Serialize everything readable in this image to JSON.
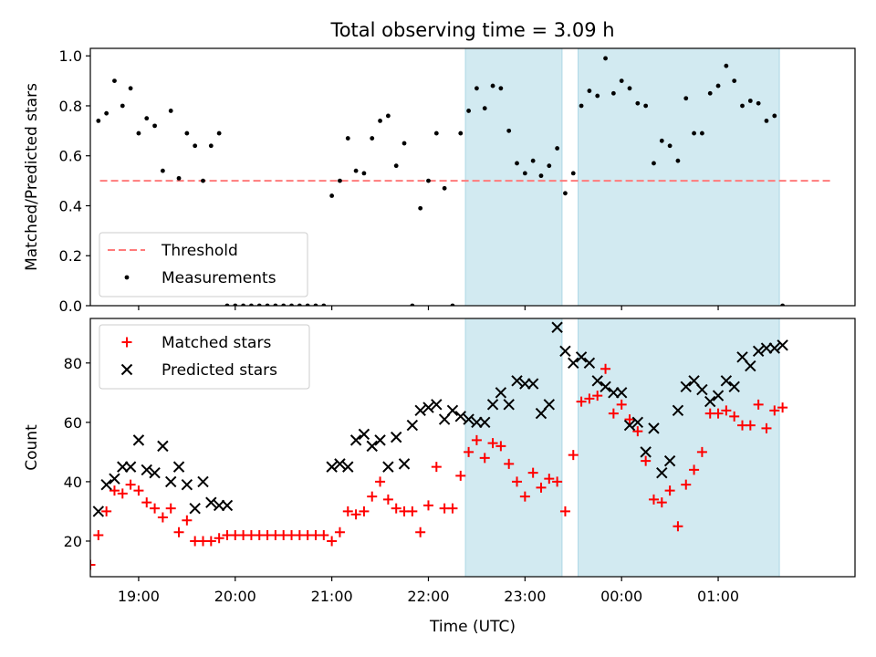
{
  "chart_data": {
    "title": "Total observing time = 3.09 h",
    "xlabel": "Time (UTC)",
    "x_ticks": [
      "19:00",
      "20:00",
      "21:00",
      "22:00",
      "23:00",
      "00:00",
      "01:00"
    ],
    "x_range": [
      "18:30",
      "02:25"
    ],
    "shaded_intervals": [
      [
        "22:23",
        "23:23"
      ],
      [
        "23:33",
        "01:38"
      ]
    ],
    "shade_color": "#add8e6",
    "panels": [
      {
        "type": "scatter",
        "ylabel": "Matched/Predicted stars",
        "ylim": [
          0,
          1.03
        ],
        "y_ticks": [
          "0.0",
          "0.2",
          "0.4",
          "0.6",
          "0.8",
          "1.0"
        ],
        "legend_position": "lower-left",
        "threshold": {
          "name": "Threshold",
          "value": 0.5,
          "x_range": [
            "18:36",
            "02:10"
          ],
          "color": "#ff7b7b",
          "style": "dashed"
        },
        "series": [
          {
            "name": "Measurements",
            "color": "#000000",
            "marker": "dot",
            "x": [
              "18:35",
              "18:40",
              "18:45",
              "18:50",
              "18:55",
              "19:00",
              "19:05",
              "19:10",
              "19:15",
              "19:20",
              "19:25",
              "19:30",
              "19:35",
              "19:40",
              "19:45",
              "19:50",
              "19:55",
              "20:00",
              "20:05",
              "20:10",
              "20:15",
              "20:20",
              "20:25",
              "20:30",
              "20:35",
              "20:40",
              "20:45",
              "20:50",
              "20:55",
              "21:00",
              "21:05",
              "21:10",
              "21:15",
              "21:20",
              "21:25",
              "21:30",
              "21:35",
              "21:40",
              "21:45",
              "21:50",
              "21:55",
              "22:00",
              "22:05",
              "22:10",
              "22:15",
              "22:20",
              "22:25",
              "22:30",
              "22:35",
              "22:40",
              "22:45",
              "22:50",
              "22:55",
              "23:00",
              "23:05",
              "23:10",
              "23:15",
              "23:20",
              "23:25",
              "23:30",
              "23:35",
              "23:40",
              "23:45",
              "23:50",
              "23:55",
              "00:00",
              "00:05",
              "00:10",
              "00:15",
              "00:20",
              "00:25",
              "00:30",
              "00:35",
              "00:40",
              "00:45",
              "00:50",
              "00:55",
              "01:00",
              "01:05",
              "01:10",
              "01:15",
              "01:20",
              "01:25",
              "01:30",
              "01:35",
              "01:40"
            ],
            "y": [
              0.74,
              0.77,
              0.9,
              0.8,
              0.87,
              0.69,
              0.75,
              0.72,
              0.54,
              0.78,
              0.51,
              0.69,
              0.64,
              0.5,
              0.64,
              0.69,
              0.0,
              0.0,
              0.0,
              0.0,
              0.0,
              0.0,
              0.0,
              0.0,
              0.0,
              0.0,
              0.0,
              0.0,
              0.0,
              0.44,
              0.5,
              0.67,
              0.54,
              0.53,
              0.67,
              0.74,
              0.76,
              0.56,
              0.65,
              0.0,
              0.39,
              0.5,
              0.69,
              0.47,
              0.0,
              0.69,
              0.78,
              0.87,
              0.79,
              0.88,
              0.87,
              0.7,
              0.57,
              0.53,
              0.58,
              0.52,
              0.56,
              0.63,
              0.45,
              0.53,
              0.8,
              0.86,
              0.84,
              0.99,
              0.85,
              0.9,
              0.87,
              0.81,
              0.8,
              0.57,
              0.66,
              0.64,
              0.58,
              0.83,
              0.69,
              0.69,
              0.85,
              0.88,
              0.96,
              0.9,
              0.8,
              0.82,
              0.81,
              0.74,
              0.76,
              0.0
            ]
          }
        ]
      },
      {
        "type": "scatter",
        "ylabel": "Count",
        "ylim": [
          8,
          95
        ],
        "y_ticks": [
          "20",
          "40",
          "60",
          "80"
        ],
        "legend_position": "top-left",
        "series": [
          {
            "name": "Matched stars",
            "color": "#ff0000",
            "marker": "plus",
            "x": [
              "18:30",
              "18:35",
              "18:40",
              "18:45",
              "18:50",
              "18:55",
              "19:00",
              "19:05",
              "19:10",
              "19:15",
              "19:20",
              "19:25",
              "19:30",
              "19:35",
              "19:40",
              "19:45",
              "19:50",
              "19:55",
              "20:00",
              "20:05",
              "20:10",
              "20:15",
              "20:20",
              "20:25",
              "20:30",
              "20:35",
              "20:40",
              "20:45",
              "20:50",
              "20:55",
              "21:00",
              "21:05",
              "21:10",
              "21:15",
              "21:20",
              "21:25",
              "21:30",
              "21:35",
              "21:40",
              "21:45",
              "21:50",
              "21:55",
              "22:00",
              "22:05",
              "22:10",
              "22:15",
              "22:20",
              "22:25",
              "22:30",
              "22:35",
              "22:40",
              "22:45",
              "22:50",
              "22:55",
              "23:00",
              "23:05",
              "23:10",
              "23:15",
              "23:20",
              "23:25",
              "23:30",
              "23:35",
              "23:40",
              "23:45",
              "23:50",
              "23:55",
              "00:00",
              "00:05",
              "00:10",
              "00:15",
              "00:20",
              "00:25",
              "00:30",
              "00:35",
              "00:40",
              "00:45",
              "00:50",
              "00:55",
              "01:00",
              "01:05",
              "01:10",
              "01:15",
              "01:20",
              "01:25",
              "01:30",
              "01:35",
              "01:40"
            ],
            "y": [
              12,
              22,
              30,
              37,
              36,
              39,
              37,
              33,
              31,
              28,
              31,
              23,
              27,
              20,
              20,
              20,
              21,
              22,
              22,
              22,
              22,
              22,
              22,
              22,
              22,
              22,
              22,
              22,
              22,
              22,
              20,
              23,
              30,
              29,
              30,
              35,
              40,
              34,
              31,
              30,
              30,
              23,
              32,
              45,
              31,
              31,
              42,
              50,
              54,
              48,
              53,
              52,
              46,
              40,
              35,
              43,
              38,
              41,
              40,
              30,
              49,
              67,
              68,
              69,
              78,
              63,
              66,
              61,
              57,
              47,
              34,
              33,
              37,
              25,
              39,
              44,
              50,
              63,
              63,
              64,
              62,
              59,
              59,
              66,
              58,
              64,
              65
            ]
          },
          {
            "name": "Predicted stars",
            "color": "#000000",
            "marker": "x",
            "x": [
              "18:35",
              "18:40",
              "18:45",
              "18:50",
              "18:55",
              "19:00",
              "19:05",
              "19:10",
              "19:15",
              "19:20",
              "19:25",
              "19:30",
              "19:35",
              "19:40",
              "19:45",
              "19:50",
              "19:55",
              "21:00",
              "21:05",
              "21:10",
              "21:15",
              "21:20",
              "21:25",
              "21:30",
              "21:35",
              "21:40",
              "21:45",
              "21:50",
              "21:55",
              "22:00",
              "22:05",
              "22:10",
              "22:15",
              "22:20",
              "22:25",
              "22:30",
              "22:35",
              "22:40",
              "22:45",
              "22:50",
              "22:55",
              "23:00",
              "23:05",
              "23:10",
              "23:15",
              "23:20",
              "23:25",
              "23:30",
              "23:35",
              "23:40",
              "23:45",
              "23:50",
              "23:55",
              "00:00",
              "00:05",
              "00:10",
              "00:15",
              "00:20",
              "00:25",
              "00:30",
              "00:35",
              "00:40",
              "00:45",
              "00:50",
              "00:55",
              "01:00",
              "01:05",
              "01:10",
              "01:15",
              "01:20",
              "01:25",
              "01:30",
              "01:35",
              "01:40"
            ],
            "y": [
              30,
              39,
              41,
              45,
              45,
              54,
              44,
              43,
              52,
              40,
              45,
              39,
              31,
              40,
              33,
              32,
              32,
              45,
              46,
              45,
              54,
              56,
              52,
              54,
              45,
              55,
              46,
              59,
              64,
              65,
              66,
              61,
              64,
              62,
              61,
              60,
              60,
              66,
              70,
              66,
              74,
              73,
              73,
              63,
              66,
              92,
              84,
              80,
              82,
              80,
              74,
              72,
              70,
              70,
              59,
              60,
              50,
              58,
              43,
              47,
              64,
              72,
              74,
              71,
              67,
              69,
              74,
              72,
              82,
              79,
              84,
              85,
              85,
              86
            ]
          }
        ]
      }
    ]
  }
}
